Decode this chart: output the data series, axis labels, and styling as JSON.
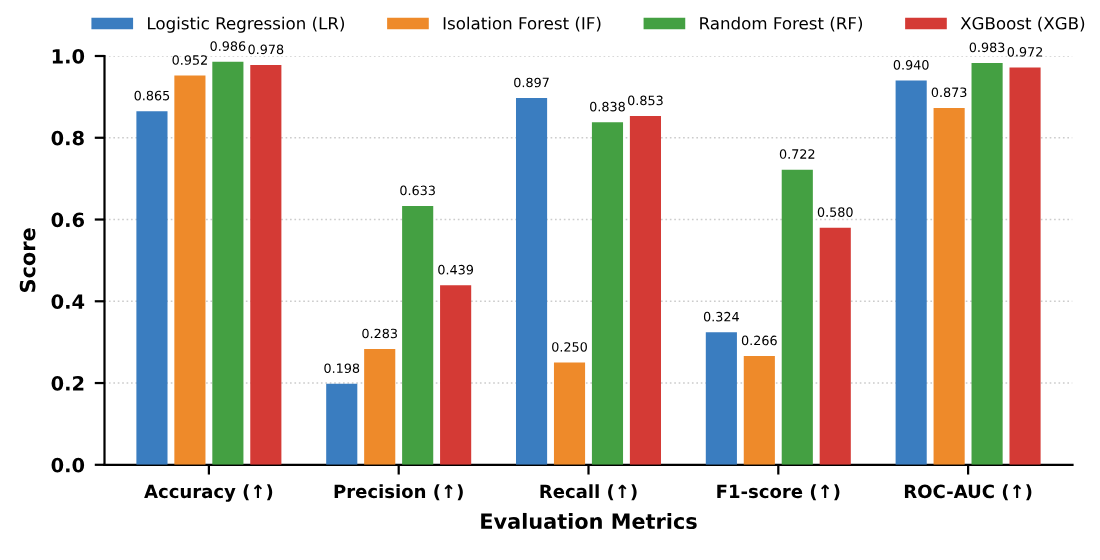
{
  "chart_data": {
    "type": "bar",
    "xlabel": "Evaluation Metrics",
    "ylabel": "Score",
    "categories": [
      "Accuracy (↑)",
      "Precision (↑)",
      "Recall (↑)",
      "F1-score (↑)",
      "ROC-AUC (↑)"
    ],
    "series": [
      {
        "name": "Logistic Regression (LR)",
        "color": "#3a7dc0",
        "values": [
          0.865,
          0.198,
          0.897,
          0.324,
          0.94
        ],
        "value_labels": [
          "0.865",
          "0.198",
          "0.897",
          "0.324",
          "0.940"
        ]
      },
      {
        "name": "Isolation Forest (IF)",
        "color": "#ee8a2a",
        "values": [
          0.952,
          0.283,
          0.25,
          0.266,
          0.873
        ],
        "value_labels": [
          "0.952",
          "0.283",
          "0.250",
          "0.266",
          "0.873"
        ]
      },
      {
        "name": "Random Forest (RF)",
        "color": "#44a042",
        "values": [
          0.986,
          0.633,
          0.838,
          0.722,
          0.983
        ],
        "value_labels": [
          "0.986",
          "0.633",
          "0.838",
          "0.722",
          "0.983"
        ]
      },
      {
        "name": "XGBoost (XGB)",
        "color": "#d43a35",
        "values": [
          0.978,
          0.439,
          0.853,
          0.58,
          0.972
        ],
        "value_labels": [
          "0.978",
          "0.439",
          "0.853",
          "0.580",
          "0.972"
        ]
      }
    ],
    "ylim": [
      0,
      1.0
    ],
    "yticks": [
      {
        "value": 0,
        "label": "0.0"
      },
      0.2,
      0.4,
      0.6,
      0.8,
      {
        "value": 1.0,
        "label": "1.0"
      }
    ],
    "grid": "y",
    "legend": "top"
  }
}
